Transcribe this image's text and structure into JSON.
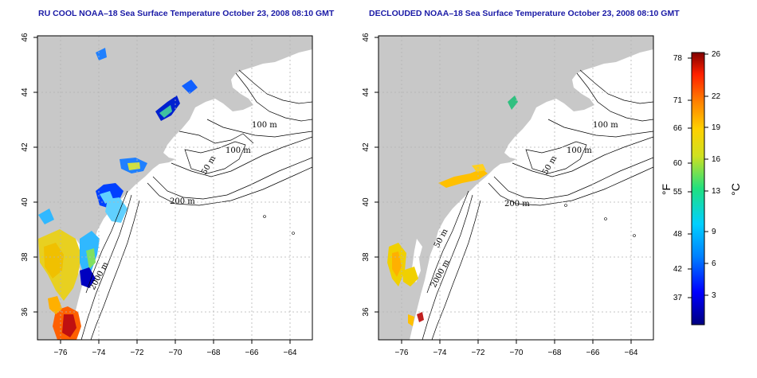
{
  "left_panel": {
    "title": "RU COOL NOAA–18 Sea Surface Temperature October 23, 2008 08:10 GMT"
  },
  "right_panel": {
    "title": "DECLOUDED NOAA–18 Sea Surface Temperature October 23, 2008 08:10 GMT"
  },
  "axes": {
    "lon_ticks": [
      "−76",
      "−74",
      "−72",
      "−70",
      "−68",
      "−66",
      "−64"
    ],
    "lat_ticks": [
      "36",
      "38",
      "40",
      "42",
      "44",
      "46"
    ],
    "lon_range": [
      -77.2,
      -62.9
    ],
    "lat_range": [
      35.0,
      46.0
    ]
  },
  "contour_labels": {
    "left": [
      "100 m",
      "100 m",
      "50 m",
      "200 m",
      "2000 m"
    ],
    "right": [
      "100 m",
      "100 m",
      "50 m",
      "200 m",
      "50 m",
      "2000 m"
    ]
  },
  "colorbar": {
    "fahrenheit_unit": "°F",
    "celsius_unit": "°C",
    "fahrenheit_ticks": [
      "78",
      "71",
      "66",
      "60",
      "55",
      "48",
      "42",
      "37"
    ],
    "celsius_ticks": [
      "26",
      "22",
      "19",
      "16",
      "13",
      "9",
      "6",
      "3"
    ],
    "range_celsius": [
      0,
      26
    ]
  },
  "colors": {
    "land": "#c8c8c8",
    "ocean": "#ffffff",
    "grid": "#b4b4b4",
    "title": "#1a1aa6",
    "contour": "#000000"
  }
}
